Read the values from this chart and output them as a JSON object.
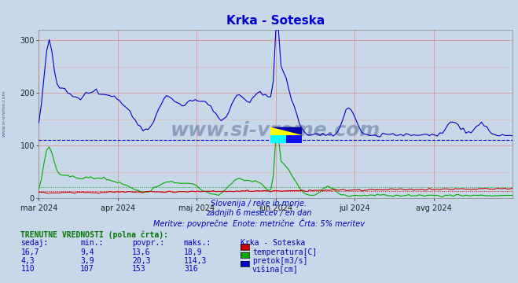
{
  "title": "Krka - Soteska",
  "background_color": "#c8d8e8",
  "plot_bg_color": "#c8d8e8",
  "x_labels": [
    "mar 2024",
    "apr 2024",
    "maj 2024",
    "jun 2024",
    "jul 2024",
    "avg 2024"
  ],
  "ylim": [
    0,
    320
  ],
  "yticks": [
    0,
    100,
    200,
    300
  ],
  "avg_line_value": 110,
  "subtitle1": "Slovenija / reke in morje.",
  "subtitle2": "zadnjih 6 mesecev / en dan",
  "subtitle3": "Meritve: povprečne  Enote: metrične  Črta: 5% meritev",
  "table_header": "TRENUTNE VREDNOSTI (polna črta):",
  "col_headers": [
    "sedaj:",
    "min.:",
    "povpr.:",
    "maks.:",
    "Krka - Soteska"
  ],
  "row1": [
    "16,7",
    "9,4",
    "13,6",
    "18,9",
    "temperatura[C]"
  ],
  "row2": [
    "4,3",
    "3,9",
    "20,3",
    "114,3",
    "pretok[m3/s]"
  ],
  "row3": [
    "110",
    "107",
    "153",
    "316",
    "višina[cm]"
  ],
  "color_temp": "#cc0000",
  "color_flow": "#00aa00",
  "color_height": "#0000cc",
  "watermark": "www.si-vreme.com",
  "watermark_color": "#1a3a6a",
  "side_text": "www.si-vreme.com",
  "title_color": "#0000cc",
  "subtitle_color": "#0000bb",
  "table_header_color": "#007700",
  "col_header_color": "#0000bb",
  "data_color": "#0000bb",
  "n_points": 183
}
